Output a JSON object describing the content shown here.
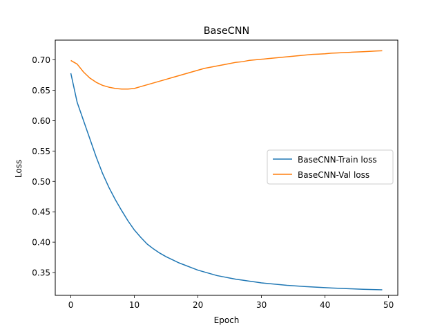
{
  "chart_data": {
    "type": "line",
    "title": "BaseCNN",
    "xlabel": "Epoch",
    "ylabel": "Loss",
    "xlim": [
      -2.45,
      51.45
    ],
    "ylim": [
      0.3125,
      0.7325
    ],
    "xticks": [
      0,
      10,
      20,
      30,
      40,
      50
    ],
    "yticks": [
      0.35,
      0.4,
      0.45,
      0.5,
      0.55,
      0.6,
      0.65,
      0.7
    ],
    "grid": false,
    "legend_position": "center-right",
    "x": [
      0,
      1,
      2,
      3,
      4,
      5,
      6,
      7,
      8,
      9,
      10,
      11,
      12,
      13,
      14,
      15,
      16,
      17,
      18,
      19,
      20,
      21,
      22,
      23,
      24,
      25,
      26,
      27,
      28,
      29,
      30,
      31,
      32,
      33,
      34,
      35,
      36,
      37,
      38,
      39,
      40,
      41,
      42,
      43,
      44,
      45,
      46,
      47,
      48,
      49
    ],
    "series": [
      {
        "name": "BaseCNN-Train loss",
        "color": "#1f77b4",
        "values": [
          0.678,
          0.63,
          0.6,
          0.57,
          0.54,
          0.513,
          0.49,
          0.47,
          0.452,
          0.435,
          0.42,
          0.408,
          0.397,
          0.389,
          0.382,
          0.376,
          0.371,
          0.366,
          0.362,
          0.358,
          0.354,
          0.351,
          0.348,
          0.345,
          0.343,
          0.341,
          0.339,
          0.3375,
          0.336,
          0.3345,
          0.333,
          0.332,
          0.331,
          0.33,
          0.329,
          0.3283,
          0.3276,
          0.3269,
          0.3263,
          0.3257,
          0.3251,
          0.3246,
          0.3241,
          0.3237,
          0.3233,
          0.3229,
          0.3225,
          0.3222,
          0.3219,
          0.3216
        ]
      },
      {
        "name": "BaseCNN-Val loss",
        "color": "#ff7f0e",
        "values": [
          0.699,
          0.693,
          0.68,
          0.67,
          0.663,
          0.658,
          0.655,
          0.653,
          0.652,
          0.652,
          0.653,
          0.656,
          0.659,
          0.662,
          0.665,
          0.668,
          0.671,
          0.674,
          0.677,
          0.68,
          0.683,
          0.686,
          0.688,
          0.69,
          0.692,
          0.694,
          0.696,
          0.697,
          0.699,
          0.7,
          0.701,
          0.702,
          0.703,
          0.704,
          0.705,
          0.706,
          0.707,
          0.708,
          0.709,
          0.7095,
          0.71,
          0.711,
          0.7115,
          0.712,
          0.7125,
          0.713,
          0.7135,
          0.714,
          0.7145,
          0.715
        ]
      }
    ]
  }
}
